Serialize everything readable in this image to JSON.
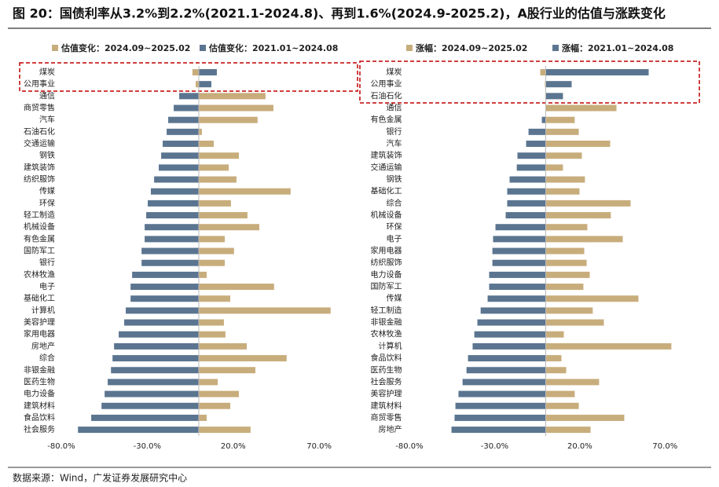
{
  "title": "图 20：国债利率从3.2%到2.2%(2021.1-2024.8)、再到1.6%(2024.9-2025.2)，A股行业的估值与涨跌变化",
  "source": "数据来源：Wind，广发证券发展研究中心",
  "chart_data": [
    {
      "type": "bar",
      "orientation": "horizontal",
      "categories": [
        "煤炭",
        "公用事业",
        "通信",
        "商贸零售",
        "汽车",
        "石油石化",
        "交通运输",
        "钢铁",
        "建筑装饰",
        "纺织服饰",
        "传媒",
        "环保",
        "轻工制造",
        "机械设备",
        "有色金属",
        "国防军工",
        "银行",
        "农林牧渔",
        "电子",
        "基础化工",
        "计算机",
        "美容护理",
        "家用电器",
        "房地产",
        "综合",
        "非银金融",
        "医药生物",
        "电力设备",
        "建筑材料",
        "食品饮料",
        "社会服务"
      ],
      "series": [
        {
          "name": "估值变化：2024.09~2025.02",
          "color": "#c8ad7c",
          "values": [
            -3.7,
            -1.8,
            38.8,
            43.4,
            34.2,
            1.8,
            8.7,
            23.3,
            17.4,
            21.9,
            53.4,
            18.7,
            28.3,
            35.2,
            15.1,
            20.5,
            15.1,
            4.6,
            43.8,
            18.3,
            76.7,
            14.6,
            15.5,
            27.9,
            51.1,
            32.9,
            11.0,
            23.3,
            18.3,
            4.6,
            30.1
          ]
        },
        {
          "name": "估值变化：2021.01~2024.08",
          "color": "#5b7590",
          "values": [
            10.5,
            7.3,
            -11.4,
            -14.6,
            -17.8,
            -18.7,
            -21.0,
            -21.9,
            -23.3,
            -26.0,
            -27.9,
            -29.7,
            -30.6,
            -31.5,
            -31.5,
            -33.3,
            -33.3,
            -38.8,
            -39.7,
            -39.7,
            -42.5,
            -43.4,
            -46.6,
            -49.3,
            -50.2,
            -51.1,
            -53.0,
            -54.8,
            -56.6,
            -62.6,
            -70.3
          ]
        }
      ],
      "xlim": [
        -80,
        80
      ],
      "xticks": [
        {
          "value": -80,
          "label": "-80.0%"
        },
        {
          "value": -30,
          "label": "-30.0%"
        },
        {
          "value": 20,
          "label": "20.0%"
        },
        {
          "value": 70,
          "label": "70.0%"
        }
      ]
    },
    {
      "type": "bar",
      "orientation": "horizontal",
      "categories": [
        "煤炭",
        "公用事业",
        "石油石化",
        "通信",
        "有色金属",
        "银行",
        "汽车",
        "建筑装饰",
        "交通运输",
        "钢铁",
        "基础化工",
        "综合",
        "机械设备",
        "环保",
        "电子",
        "家用电器",
        "纺织服饰",
        "电力设备",
        "国防军工",
        "传媒",
        "轻工制造",
        "非银金融",
        "农林牧渔",
        "计算机",
        "食品饮料",
        "医药生物",
        "社会服务",
        "美容护理",
        "建筑材料",
        "商贸零售",
        "房地产"
      ],
      "series": [
        {
          "name": "涨幅：2024.09~2025.02",
          "color": "#c8ad7c",
          "values": [
            -3.2,
            -0.5,
            -0.3,
            41.5,
            17.0,
            19.4,
            37.8,
            21.2,
            10.1,
            23.0,
            19.8,
            49.8,
            38.2,
            24.4,
            45.2,
            22.6,
            24.0,
            25.8,
            22.1,
            54.4,
            27.6,
            34.1,
            10.6,
            73.7,
            9.2,
            12.0,
            31.3,
            17.0,
            19.4,
            46.1,
            26.3
          ]
        },
        {
          "name": "涨幅：2021.01~2024.08",
          "color": "#5b7590",
          "values": [
            60.4,
            15.2,
            10.1,
            0,
            -2.3,
            -10.1,
            -11.5,
            -16.6,
            -17.0,
            -21.2,
            -22.6,
            -22.6,
            -23.5,
            -29.5,
            -30.9,
            -31.3,
            -31.3,
            -33.2,
            -33.2,
            -34.1,
            -38.2,
            -40.1,
            -41.9,
            -42.9,
            -45.6,
            -46.5,
            -48.8,
            -51.2,
            -53.0,
            -53.5,
            -55.3
          ]
        }
      ],
      "xlim": [
        -80,
        80
      ],
      "xticks": [
        {
          "value": -80,
          "label": "-80.0%"
        },
        {
          "value": -30,
          "label": "-30.0%"
        },
        {
          "value": 20,
          "label": "20.0%"
        },
        {
          "value": 70,
          "label": "70.0%"
        }
      ]
    }
  ]
}
